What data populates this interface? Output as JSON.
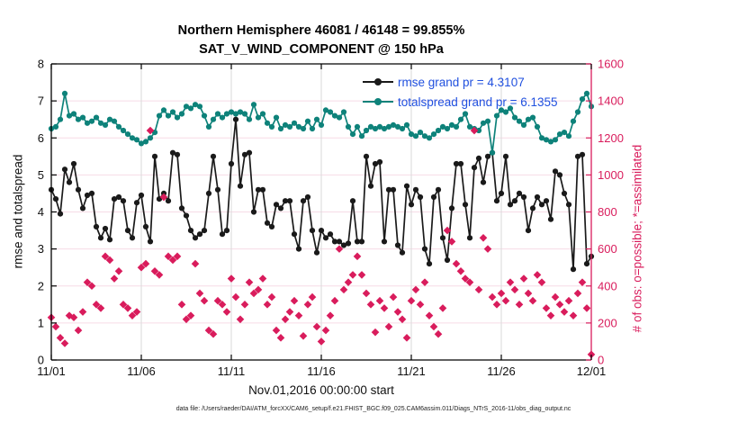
{
  "colors": {
    "rmse": "#1a1a1a",
    "totalspread": "#0E827A",
    "obs": "#D91C5C",
    "legend_text": "#2050DF",
    "hgrid": "#F7DCE6",
    "vgrid": "#DADADA",
    "axis_left": "#000000",
    "axis_right": "#D91C5C"
  },
  "caption": "data file: /Users/raeder/DAI/ATM_forcXX/CAM6_setup/f.e21.FHIST_BGC.f09_025.CAM6assim.011/Diags_NTrS_2016-11/obs_diag_output.nc",
  "chart_data": {
    "type": "line",
    "title": {
      "line1": "Northern Hemisphere 46081 / 46148 = 99.855%",
      "line2": "SAT_V_WIND_COMPONENT @ 150 hPa"
    },
    "xlabel": "Nov.01,2016 00:00:00 start",
    "x_axis": {
      "lim_days": [
        0,
        30
      ],
      "tick_positions_days": [
        0,
        5,
        10,
        15,
        20,
        25,
        30
      ],
      "tick_labels": [
        "11/01",
        "11/06",
        "11/11",
        "11/16",
        "11/21",
        "11/26",
        "12/01"
      ]
    },
    "left_axis": {
      "label": "rmse and totalspread",
      "lim": [
        0,
        8
      ],
      "ticks": [
        0,
        1,
        2,
        3,
        4,
        5,
        6,
        7,
        8
      ]
    },
    "right_axis": {
      "label": "# of obs: o=possible; *=assimilated",
      "lim": [
        0,
        1600
      ],
      "ticks": [
        0,
        200,
        400,
        600,
        800,
        1000,
        1200,
        1400,
        1600
      ]
    },
    "sample_step_days": 0.25,
    "series": [
      {
        "name": "rmse",
        "legend": "rmse grand pr = 4.3107",
        "axis": "left",
        "marker": "circle",
        "values": [
          4.6,
          4.35,
          3.95,
          5.15,
          4.8,
          5.3,
          4.6,
          4.1,
          4.45,
          4.5,
          3.6,
          3.3,
          3.55,
          3.25,
          4.35,
          4.4,
          4.3,
          3.5,
          3.3,
          4.25,
          4.45,
          3.6,
          3.2,
          5.5,
          4.35,
          4.5,
          4.3,
          5.6,
          5.55,
          4.1,
          3.9,
          3.5,
          3.3,
          3.4,
          3.5,
          4.5,
          5.5,
          4.6,
          3.4,
          3.5,
          5.3,
          6.5,
          4.7,
          5.55,
          5.6,
          4.0,
          4.6,
          4.6,
          3.7,
          3.6,
          4.2,
          4.1,
          4.3,
          4.3,
          3.4,
          3.0,
          4.3,
          4.4,
          3.5,
          2.9,
          3.5,
          3.3,
          3.4,
          3.2,
          3.2,
          3.1,
          3.15,
          4.3,
          3.2,
          3.2,
          5.5,
          4.7,
          5.3,
          5.35,
          3.2,
          4.6,
          4.6,
          3.1,
          2.9,
          4.7,
          4.2,
          4.6,
          4.4,
          3.0,
          2.6,
          4.4,
          4.6,
          3.3,
          2.7,
          4.1,
          5.3,
          5.3,
          4.2,
          3.3,
          5.2,
          5.45,
          4.8,
          5.5,
          5.6,
          4.3,
          4.5,
          5.5,
          4.2,
          4.3,
          4.5,
          4.4,
          3.5,
          4.1,
          4.4,
          4.2,
          4.3,
          3.8,
          5.1,
          5.0,
          4.5,
          4.2,
          2.45,
          5.5,
          5.55,
          2.6,
          2.8
        ]
      },
      {
        "name": "totalspread",
        "legend": "totalspread grand pr = 6.1355",
        "axis": "left",
        "marker": "circle",
        "values": [
          6.25,
          6.3,
          6.5,
          7.2,
          6.6,
          6.65,
          6.5,
          6.55,
          6.4,
          6.45,
          6.55,
          6.4,
          6.35,
          6.5,
          6.45,
          6.3,
          6.2,
          6.1,
          6.0,
          5.95,
          5.85,
          5.9,
          6.0,
          6.15,
          6.6,
          6.75,
          6.6,
          6.7,
          6.55,
          6.65,
          6.85,
          6.8,
          6.9,
          6.85,
          6.6,
          6.3,
          6.5,
          6.65,
          6.55,
          6.65,
          6.7,
          6.65,
          6.7,
          6.65,
          6.5,
          6.9,
          6.55,
          6.65,
          6.4,
          6.3,
          6.55,
          6.25,
          6.35,
          6.3,
          6.4,
          6.3,
          6.25,
          6.45,
          6.25,
          6.5,
          6.35,
          6.75,
          6.7,
          6.6,
          6.55,
          6.7,
          6.3,
          6.1,
          6.3,
          6.05,
          6.2,
          6.3,
          6.25,
          6.3,
          6.25,
          6.3,
          6.35,
          6.3,
          6.25,
          6.35,
          6.1,
          6.05,
          6.15,
          6.05,
          6.0,
          6.1,
          6.2,
          6.3,
          6.25,
          6.35,
          6.3,
          6.5,
          6.65,
          6.3,
          6.25,
          6.2,
          6.4,
          6.45,
          5.6,
          6.6,
          6.75,
          6.7,
          6.8,
          6.55,
          6.45,
          6.35,
          6.5,
          6.55,
          6.3,
          6.0,
          5.95,
          5.9,
          5.95,
          6.1,
          6.15,
          6.05,
          6.45,
          6.7,
          7.05,
          7.2,
          6.85
        ]
      },
      {
        "name": "obs-assimilated",
        "legend": null,
        "axis": "right",
        "marker": "diamond",
        "values": [
          230,
          180,
          120,
          90,
          240,
          230,
          160,
          260,
          420,
          400,
          300,
          280,
          560,
          540,
          440,
          480,
          300,
          280,
          240,
          260,
          500,
          520,
          1240,
          480,
          460,
          880,
          560,
          540,
          560,
          300,
          220,
          240,
          520,
          360,
          320,
          160,
          140,
          320,
          300,
          260,
          440,
          340,
          220,
          300,
          420,
          360,
          380,
          440,
          300,
          340,
          160,
          120,
          220,
          260,
          320,
          240,
          130,
          300,
          340,
          180,
          100,
          160,
          240,
          320,
          600,
          380,
          420,
          460,
          560,
          460,
          360,
          300,
          150,
          320,
          280,
          180,
          340,
          260,
          220,
          120,
          320,
          380,
          300,
          420,
          240,
          180,
          140,
          280,
          700,
          640,
          520,
          480,
          440,
          420,
          1240,
          380,
          660,
          600,
          340,
          300,
          360,
          320,
          420,
          380,
          300,
          440,
          360,
          320,
          460,
          420,
          280,
          240,
          340,
          300,
          260,
          320,
          240,
          360,
          420,
          280,
          30
        ]
      }
    ]
  }
}
